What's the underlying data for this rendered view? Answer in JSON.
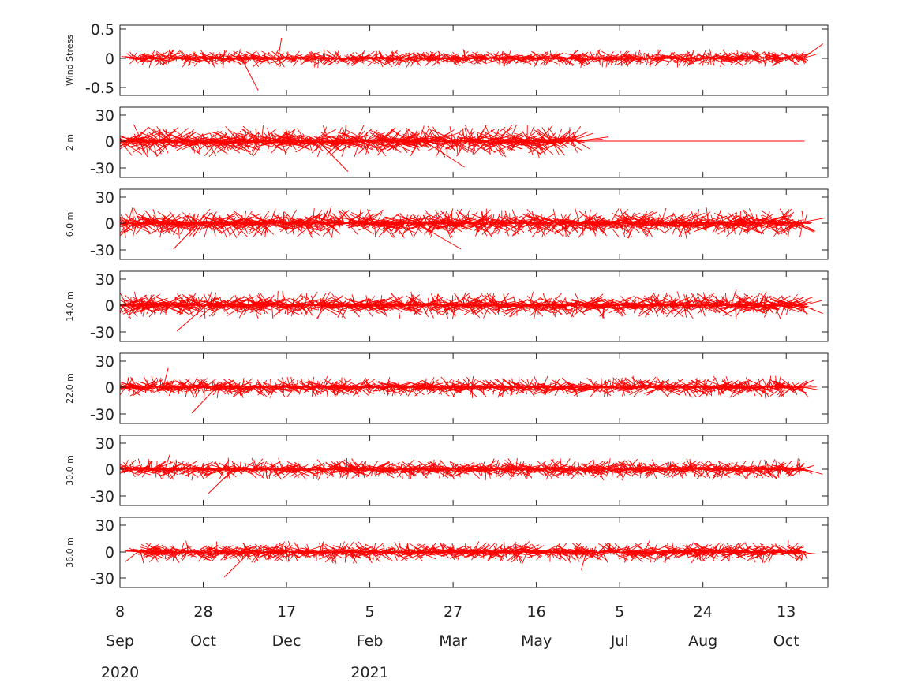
{
  "figure": {
    "colors": {
      "stick": "#ff0000",
      "axis": "#222222",
      "background": "#ffffff"
    },
    "x_tick_days": [
      "8",
      "28",
      "17",
      "5",
      "27",
      "16",
      "5",
      "24",
      "13"
    ],
    "x_tick_months": [
      "Sep",
      "Oct",
      "Dec",
      "Feb",
      "Mar",
      "May",
      "Jul",
      "Aug",
      "Oct"
    ],
    "x_tick_years": [
      "2020",
      "",
      "",
      "2021",
      "",
      "",
      "",
      "",
      ""
    ]
  },
  "chart_data": [
    {
      "type": "stick-vector",
      "ylabel": "Wind Stress",
      "yticks": [
        "0.5",
        "0",
        "-0.5"
      ],
      "ylim": [
        -0.6,
        0.6
      ],
      "data_start": "2020-09-16",
      "data_end": "2021-10-24",
      "amplitude": 0.1,
      "bursts": [
        {
          "date": "2020-11-20",
          "u": 0.25,
          "v": -0.55
        },
        {
          "date": "2020-12-12",
          "u": 0.05,
          "v": 0.35
        },
        {
          "date": "2021-10-23",
          "u": 0.3,
          "v": 0.25
        }
      ]
    },
    {
      "type": "stick-vector",
      "ylabel": "2 m",
      "yticks": [
        "30",
        "0",
        "-30"
      ],
      "ylim": [
        -38,
        38
      ],
      "data_start": "2020-09-08",
      "data_end": "2021-06-10",
      "flat_until": "2021-10-24",
      "amplitude": 12,
      "bursts": [
        {
          "date": "2021-01-05",
          "u": 30,
          "v": -35
        },
        {
          "date": "2021-03-10",
          "u": 40,
          "v": -30
        },
        {
          "date": "2021-04-10",
          "u": 10,
          "v": 18
        }
      ]
    },
    {
      "type": "stick-vector",
      "ylabel": "6.0 m",
      "yticks": [
        "30",
        "0",
        "-30"
      ],
      "ylim": [
        -38,
        38
      ],
      "data_start": "2020-09-08",
      "data_end": "2021-10-24",
      "amplitude": 11,
      "bursts": [
        {
          "date": "2020-10-25",
          "u": -25,
          "v": -30
        },
        {
          "date": "2021-03-05",
          "u": 45,
          "v": -30
        },
        {
          "date": "2021-01-10",
          "u": 5,
          "v": 20
        }
      ]
    },
    {
      "type": "stick-vector",
      "ylabel": "14.0 m",
      "yticks": [
        "30",
        "0",
        "-30"
      ],
      "ylim": [
        -38,
        38
      ],
      "data_start": "2020-09-08",
      "data_end": "2021-10-24",
      "amplitude": 10,
      "bursts": [
        {
          "date": "2020-10-30",
          "u": -30,
          "v": -30
        },
        {
          "date": "2021-09-10",
          "u": 5,
          "v": 18
        }
      ]
    },
    {
      "type": "stick-vector",
      "ylabel": "22.0 m",
      "yticks": [
        "30",
        "0",
        "-30"
      ],
      "ylim": [
        -38,
        38
      ],
      "data_start": "2020-09-08",
      "data_end": "2021-10-24",
      "amplitude": 8,
      "bursts": [
        {
          "date": "2020-11-05",
          "u": -25,
          "v": -30
        },
        {
          "date": "2020-10-04",
          "u": 5,
          "v": 22
        }
      ]
    },
    {
      "type": "stick-vector",
      "ylabel": "30.0 m",
      "yticks": [
        "30",
        "0",
        "-30"
      ],
      "ylim": [
        -38,
        38
      ],
      "data_start": "2020-09-08",
      "data_end": "2021-10-24",
      "amplitude": 8,
      "bursts": [
        {
          "date": "2020-11-15",
          "u": -25,
          "v": -28
        },
        {
          "date": "2020-10-05",
          "u": 5,
          "v": 17
        }
      ]
    },
    {
      "type": "stick-vector",
      "ylabel": "36.0 m",
      "yticks": [
        "30",
        "0",
        "-30"
      ],
      "ylim": [
        -38,
        38
      ],
      "data_start": "2020-09-18",
      "data_end": "2021-10-24",
      "amplitude": 8,
      "bursts": [
        {
          "date": "2020-11-25",
          "u": -25,
          "v": -28
        },
        {
          "date": "2021-06-15",
          "u": -5,
          "v": -20
        }
      ]
    }
  ]
}
